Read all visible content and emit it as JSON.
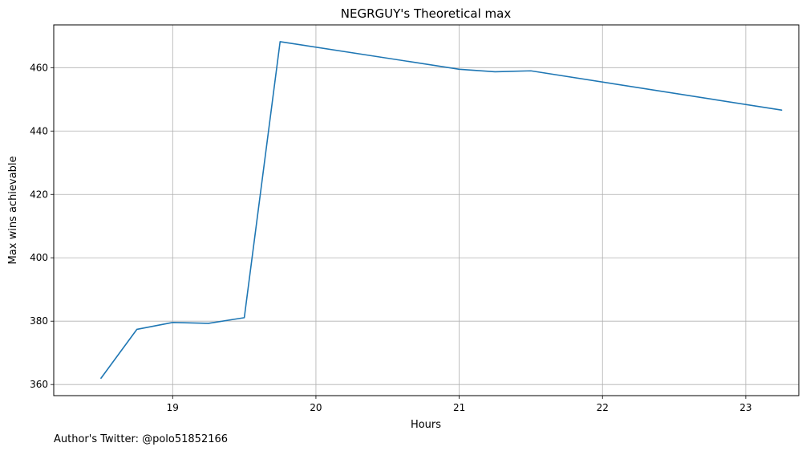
{
  "chart_data": {
    "type": "line",
    "title": "NEGRGUY's Theoretical max",
    "xlabel": "Hours",
    "ylabel": "Max wins achievable",
    "xlim": [
      18.17,
      23.37
    ],
    "ylim": [
      356.5,
      473.5
    ],
    "xticks": [
      19,
      20,
      21,
      22,
      23
    ],
    "yticks": [
      360,
      380,
      400,
      420,
      440,
      460
    ],
    "grid": true,
    "series": [
      {
        "color": "#1f77b4",
        "x": [
          18.5,
          18.75,
          19.0,
          19.25,
          19.5,
          19.75,
          21.0,
          21.25,
          21.5,
          23.25
        ],
        "y": [
          362,
          377.4,
          379.6,
          379.3,
          381.1,
          468.2,
          459.5,
          458.7,
          459.0,
          446.6
        ]
      }
    ]
  },
  "footer": {
    "note": "Author's Twitter: @polo51852166"
  }
}
